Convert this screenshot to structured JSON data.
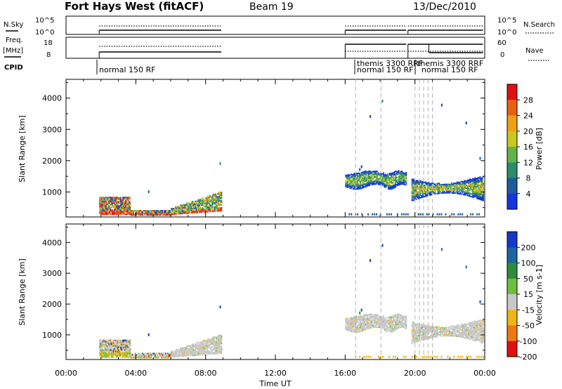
{
  "header": {
    "station": "Fort Hays West (fitACF)",
    "beam": "Beam 19",
    "date": "13/Dec/2010"
  },
  "strips": {
    "nsky_label": "N.Sky",
    "nsky_ticks": [
      "10^5",
      "10^0"
    ],
    "nsearch_ticks": [
      "10^5",
      "10^0"
    ],
    "nsearch_label": "N.Search",
    "freq_label": "Freq.",
    "freq_unit": "[MHz]",
    "freq_ticks": [
      "18",
      "8"
    ],
    "nave_ticks": [
      "60",
      "0"
    ],
    "nave_label": "Nave",
    "cpid_label": "CPID",
    "cpid_programs": [
      {
        "hour": 1.9,
        "label": "normal 150 RF"
      },
      {
        "hour": 16.6,
        "label": "themis 3300 RRF"
      },
      {
        "hour": 16.6,
        "label": "normal 150 RF"
      },
      {
        "hour": 20.0,
        "label": "themis 3300 RRF"
      },
      {
        "hour": 20.6,
        "label": "normal 150 RF"
      }
    ]
  },
  "chart_data": [
    {
      "type": "heatmap",
      "name": "power",
      "ylabel": "Slant Range [km]",
      "yticks": [
        "1000",
        "2000",
        "3000",
        "4000"
      ],
      "ylim": [
        200,
        4600
      ],
      "colorbar": {
        "label": "Power [dB]",
        "ticks": [
          "4",
          "8",
          "12",
          "16",
          "20",
          "24",
          "28"
        ],
        "colors": [
          "#1436dc",
          "#1d5a9e",
          "#2e8c6a",
          "#62b34a",
          "#c8c81e",
          "#f0a014",
          "#e86010",
          "#e01010"
        ]
      },
      "echo_regions": [
        {
          "t0": 1.9,
          "t1": 3.7,
          "r0": 260,
          "r1": 820,
          "level": "mixed-high"
        },
        {
          "t0": 3.7,
          "t1": 6.0,
          "r0": 240,
          "r1": 420,
          "level": "mixed-high"
        },
        {
          "t0": 6.0,
          "t1": 8.9,
          "r0": 260,
          "r1": 1000,
          "level": "mixed"
        },
        {
          "t0": 16.0,
          "t1": 18.2,
          "r0": 1050,
          "r1": 1650,
          "level": "low-mid"
        },
        {
          "t0": 18.2,
          "t1": 19.5,
          "r0": 1100,
          "r1": 1550,
          "level": "low-mid"
        },
        {
          "t0": 19.8,
          "t1": 23.9,
          "r0": 700,
          "r1": 1550,
          "level": "low-high"
        }
      ]
    },
    {
      "type": "heatmap",
      "name": "velocity",
      "ylabel": "Slant Range [km]",
      "xlabel": "Time UT",
      "xticks": [
        "00:00",
        "04:00",
        "08:00",
        "12:00",
        "16:00",
        "20:00",
        "00:00"
      ],
      "xlim": [
        0,
        24
      ],
      "yticks": [
        "1000",
        "2000",
        "3000",
        "4000"
      ],
      "ylim": [
        200,
        4600
      ],
      "colorbar": {
        "label": "Velocity [m s-1]",
        "ticks": [
          "200",
          "100",
          "50",
          "15",
          "-15",
          "-50",
          "-100",
          "-200"
        ],
        "colors": [
          "#1438c8",
          "#1e64a0",
          "#2e8c3c",
          "#6cc03c",
          "#c8c8c8",
          "#f0b414",
          "#f07814",
          "#e01010"
        ]
      },
      "echo_regions": [
        {
          "t0": 1.9,
          "t1": 3.7,
          "r0": 260,
          "r1": 820,
          "level": "mixed"
        },
        {
          "t0": 3.7,
          "t1": 6.0,
          "r0": 240,
          "r1": 420,
          "level": "mixed"
        },
        {
          "t0": 6.0,
          "t1": 8.9,
          "r0": 260,
          "r1": 1000,
          "level": "near-zero"
        },
        {
          "t0": 16.0,
          "t1": 18.2,
          "r0": 1050,
          "r1": 1650,
          "level": "near-zero"
        },
        {
          "t0": 18.2,
          "t1": 19.5,
          "r0": 1100,
          "r1": 1550,
          "level": "near-zero"
        },
        {
          "t0": 19.8,
          "t1": 23.9,
          "r0": 700,
          "r1": 1550,
          "level": "near-zero"
        }
      ]
    }
  ],
  "mode_change_hours": [
    16.6,
    18.05,
    20.0,
    20.25,
    20.5,
    20.75,
    21.0
  ]
}
